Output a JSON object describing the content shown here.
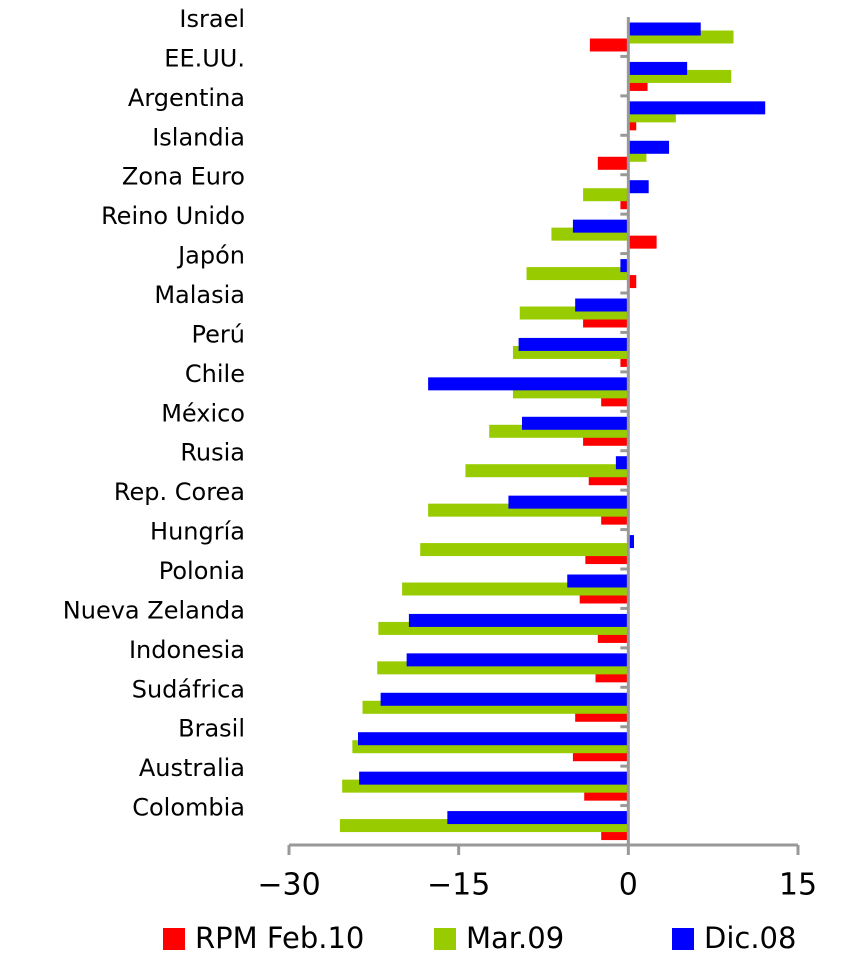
{
  "chart_data": {
    "type": "hbar",
    "categories": [
      "Israel",
      "EE.UU.",
      "Argentina",
      "Islandia",
      "Zona Euro",
      "Reino Unido",
      "Japón",
      "Malasia",
      "Perú",
      "Chile",
      "México",
      "Rusia",
      "Rep. Corea",
      "Hungría",
      "Polonia",
      "Nueva Zelanda",
      "Indonesia",
      "Sudáfrica",
      "Brasil",
      "Australia",
      "Colombia"
    ],
    "series": [
      {
        "name": "RPM Feb.10",
        "color": "#ff0000",
        "values": [
          -3.4,
          1.7,
          0.7,
          -2.7,
          -0.7,
          2.5,
          0.7,
          -4.0,
          -0.7,
          -2.4,
          -4.0,
          -3.5,
          -2.4,
          -3.8,
          -4.3,
          -2.7,
          -2.9,
          -4.7,
          -4.9,
          -3.9,
          -2.4
        ]
      },
      {
        "name": "Mar.09",
        "color": "#99cc00",
        "values": [
          9.3,
          9.1,
          4.2,
          1.6,
          -4.0,
          -6.8,
          -9.0,
          -9.6,
          -10.2,
          -10.2,
          -12.3,
          -14.4,
          -17.7,
          -18.4,
          -20.0,
          -22.1,
          -22.2,
          -23.5,
          -24.4,
          -25.3,
          -25.5
        ]
      },
      {
        "name": "Dic.08",
        "color": "#0000ff",
        "values": [
          6.4,
          5.2,
          12.1,
          3.6,
          1.8,
          -4.9,
          -0.7,
          -4.7,
          -9.7,
          -17.7,
          -9.4,
          -1.1,
          -10.6,
          0.5,
          -5.4,
          -19.4,
          -19.6,
          -21.9,
          -23.9,
          -23.8,
          -16.0
        ]
      }
    ],
    "xlim": [
      -30,
      15
    ],
    "xticks": [
      {
        "value": -30,
        "label": "−30"
      },
      {
        "value": -15,
        "label": "−15"
      },
      0,
      15
    ]
  }
}
